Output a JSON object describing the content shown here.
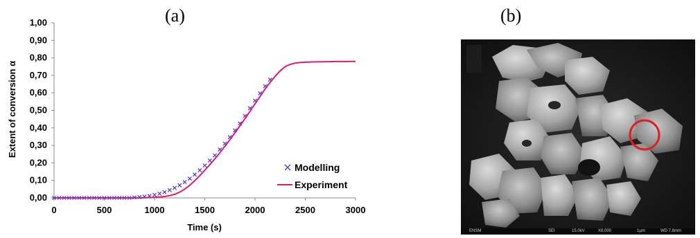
{
  "panels": {
    "left_label": "(a)",
    "right_label": "(b)"
  },
  "chart_data": {
    "type": "line",
    "title": "",
    "xlabel": "Time (s)",
    "ylabel": "Extent of conversion α",
    "xlim": [
      0,
      3000
    ],
    "ylim": [
      0,
      1.0
    ],
    "x_ticks": [
      0,
      500,
      1000,
      1500,
      2000,
      2500,
      3000
    ],
    "x_tick_labels": [
      "0",
      "500",
      "1000",
      "1500",
      "2000",
      "2500",
      "3000"
    ],
    "y_ticks": [
      0,
      0.1,
      0.2,
      0.3,
      0.4,
      0.5,
      0.6,
      0.7,
      0.8,
      0.9,
      1.0
    ],
    "y_tick_labels": [
      "0,00",
      "0,10",
      "0,20",
      "0,30",
      "0,40",
      "0,50",
      "0,60",
      "0,70",
      "0,80",
      "0,90",
      "1,00"
    ],
    "grid": false,
    "legend_position": "bottom-right",
    "series": [
      {
        "name": "Modelling",
        "kind": "scatter",
        "marker": "x",
        "color": "#5b3fd6",
        "x": [
          0,
          50,
          100,
          150,
          200,
          250,
          300,
          350,
          400,
          450,
          500,
          550,
          600,
          650,
          700,
          750,
          800,
          850,
          900,
          950,
          1000,
          1050,
          1100,
          1150,
          1200,
          1250,
          1300,
          1350,
          1400,
          1450,
          1500,
          1550,
          1600,
          1650,
          1700,
          1750,
          1800,
          1850,
          1900,
          1950,
          2000,
          2050,
          2100,
          2150
        ],
        "y": [
          0,
          0,
          0,
          0,
          0,
          0,
          0,
          0,
          0,
          0,
          0,
          0,
          0,
          0,
          0,
          0,
          0.002,
          0.004,
          0.007,
          0.011,
          0.017,
          0.024,
          0.033,
          0.044,
          0.057,
          0.072,
          0.09,
          0.11,
          0.133,
          0.158,
          0.185,
          0.213,
          0.243,
          0.276,
          0.31,
          0.347,
          0.385,
          0.425,
          0.468,
          0.512,
          0.555,
          0.597,
          0.638,
          0.675
        ]
      },
      {
        "name": "Experiment",
        "kind": "line",
        "color": "#e0186f",
        "x": [
          0,
          800,
          900,
          1000,
          1050,
          1100,
          1150,
          1200,
          1250,
          1300,
          1350,
          1400,
          1450,
          1500,
          1550,
          1600,
          1650,
          1700,
          1750,
          1800,
          1850,
          1900,
          1950,
          2000,
          2050,
          2100,
          2150,
          2200,
          2250,
          2300,
          2350,
          2400,
          2450,
          2500,
          2600,
          2700,
          2800,
          2900,
          3000
        ],
        "y": [
          0,
          0,
          0.001,
          0.003,
          0.005,
          0.008,
          0.013,
          0.02,
          0.033,
          0.05,
          0.072,
          0.098,
          0.127,
          0.158,
          0.19,
          0.223,
          0.258,
          0.295,
          0.333,
          0.372,
          0.412,
          0.453,
          0.495,
          0.537,
          0.58,
          0.622,
          0.66,
          0.695,
          0.726,
          0.75,
          0.763,
          0.77,
          0.773,
          0.775,
          0.777,
          0.778,
          0.779,
          0.779,
          0.78
        ]
      }
    ]
  },
  "sem_image": {
    "bar_labels": [
      "ENSM",
      "SEI",
      "15.0kV",
      "X8,000",
      "1μm",
      "WD 7.8mm"
    ],
    "highlight_color": "#e02020"
  }
}
